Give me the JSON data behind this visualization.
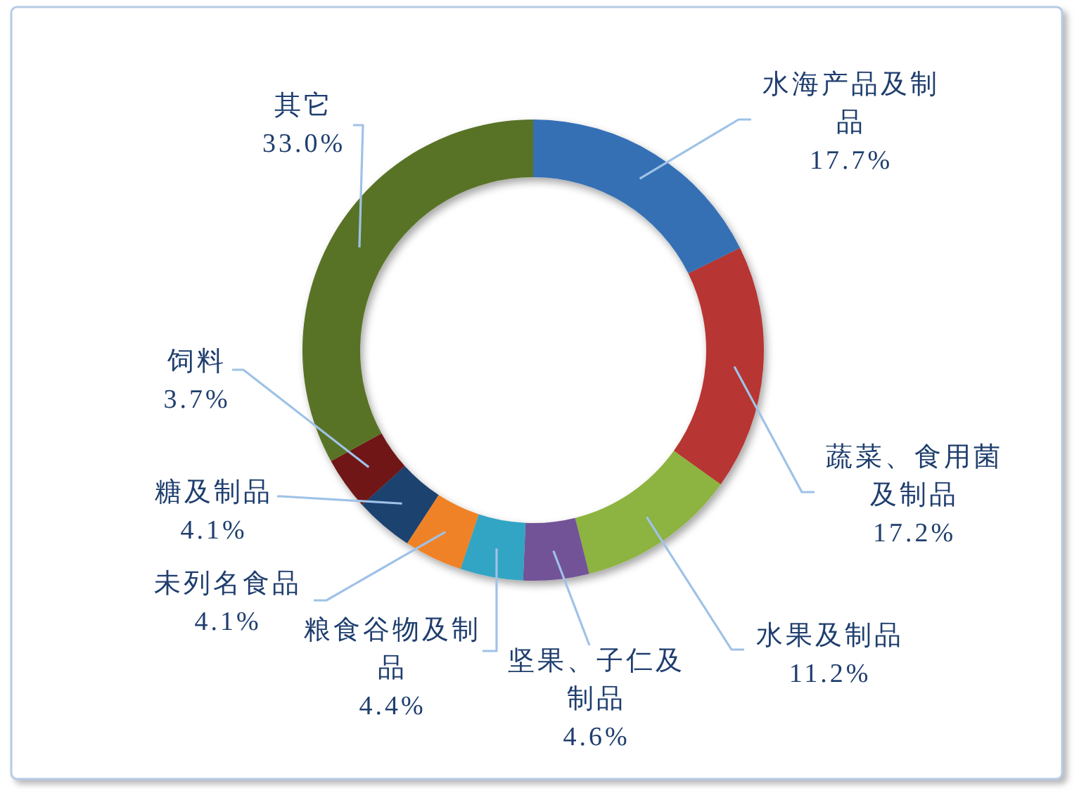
{
  "chart_data": {
    "type": "donut",
    "categories": [
      "水海产品及制品",
      "蔬菜、食用菌及制品",
      "水果及制品",
      "坚果、子仁及制品",
      "粮食谷物及制品",
      "未列名食品",
      "糖及制品",
      "饲料",
      "其它"
    ],
    "values": [
      17.7,
      17.2,
      11.2,
      4.6,
      4.4,
      4.1,
      4.1,
      3.7,
      33.0
    ],
    "colors": [
      "#3670b5",
      "#b73632",
      "#8db340",
      "#735297",
      "#33a5c4",
      "#ef8228",
      "#1d426f",
      "#701919",
      "#587325"
    ],
    "value_labels": [
      "17.7%",
      "17.2%",
      "11.2%",
      "4.6%",
      "4.4%",
      "4.1%",
      "4.1%",
      "3.7%",
      "33.0%"
    ]
  }
}
